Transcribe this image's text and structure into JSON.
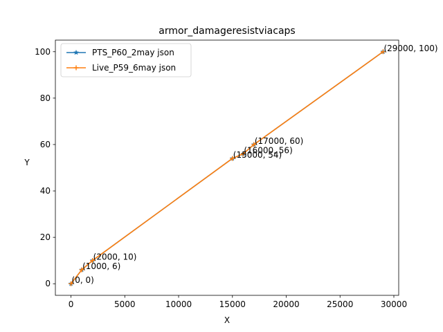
{
  "chart_data": {
    "type": "line",
    "title": "armor_damageresistviacaps",
    "xlabel": "X",
    "ylabel": "Y",
    "xlim": [
      -1450,
      30450
    ],
    "ylim": [
      -5,
      105
    ],
    "xticks": [
      0,
      5000,
      10000,
      15000,
      20000,
      25000,
      30000
    ],
    "xtick_labels": [
      "0",
      "5000",
      "10000",
      "15000",
      "20000",
      "25000",
      "30000"
    ],
    "yticks": [
      0,
      20,
      40,
      60,
      80,
      100
    ],
    "ytick_labels": [
      "0",
      "20",
      "40",
      "60",
      "80",
      "100"
    ],
    "grid": false,
    "legend_position": "upper-left",
    "series": [
      {
        "name": "PTS_P60_2may json",
        "color": "#1f77b4",
        "marker": "star",
        "x": [
          0,
          1000,
          2000,
          15000,
          16000,
          17000,
          29000
        ],
        "y": [
          0,
          6,
          10,
          54,
          56,
          60,
          100
        ]
      },
      {
        "name": "Live_P59_6may json",
        "color": "#ff7f0e",
        "marker": "plus",
        "x": [
          0,
          1000,
          2000,
          15000,
          16000,
          17000,
          29000
        ],
        "y": [
          0,
          6,
          10,
          54,
          56,
          60,
          100
        ]
      }
    ],
    "annotations": [
      {
        "text": "(0, 0)",
        "x": 0,
        "y": 0
      },
      {
        "text": "(1000, 6)",
        "x": 1000,
        "y": 6
      },
      {
        "text": "(2000, 10)",
        "x": 2000,
        "y": 10
      },
      {
        "text": "(15000, 54)",
        "x": 15000,
        "y": 54
      },
      {
        "text": "(16000, 56)",
        "x": 16000,
        "y": 56
      },
      {
        "text": "(17000, 60)",
        "x": 17000,
        "y": 60
      },
      {
        "text": "(29000, 100)",
        "x": 29000,
        "y": 100
      }
    ]
  }
}
